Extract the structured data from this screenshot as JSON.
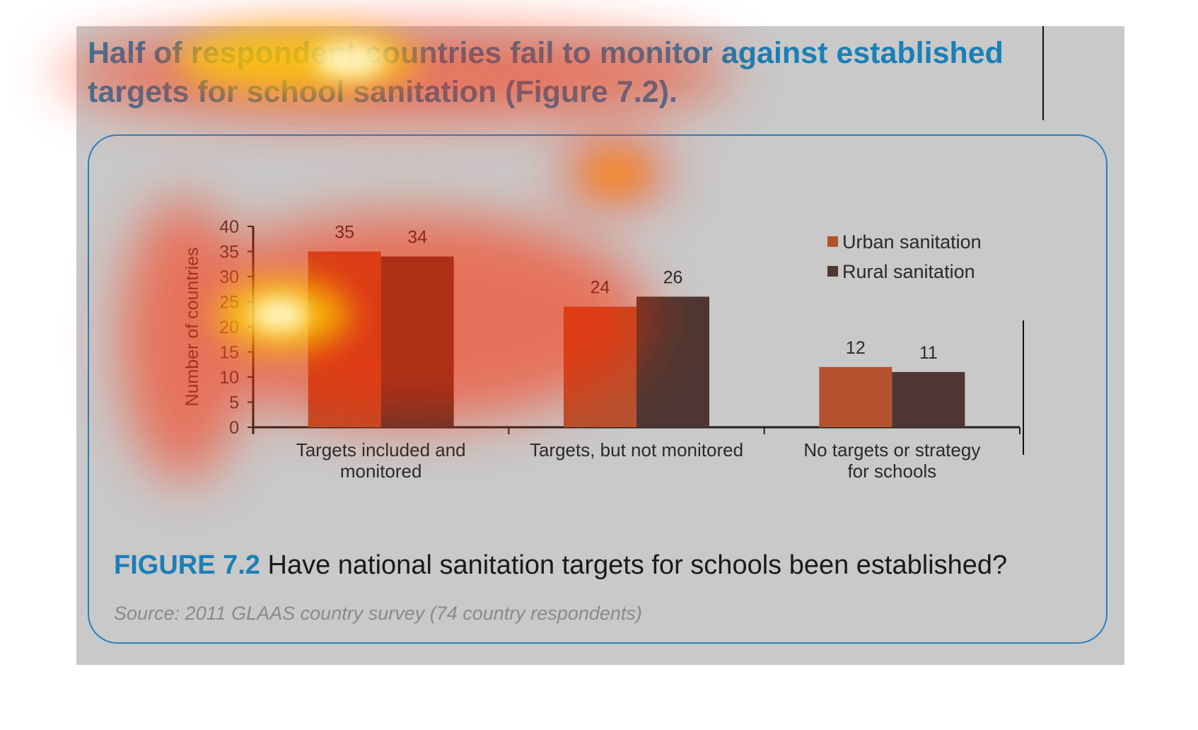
{
  "headline": "Half of respondent countries fail to monitor against established targets for school sanitation (Figure 7.2).",
  "caption": {
    "figure_number": "FIGURE 7.2",
    "text": " Have national sanitation targets for schools been established?"
  },
  "source": "Source: 2011 GLAAS country survey (74 country respondents)",
  "colors": {
    "urban": "#b4522f",
    "rural": "#4e3732",
    "accent": "#1a7fb6",
    "panel": "#c9c9c9"
  },
  "chart_data": {
    "type": "bar",
    "title": "",
    "xlabel": "",
    "ylabel": "Number of countries",
    "ylim": [
      0,
      40
    ],
    "yticks": [
      0,
      5,
      10,
      15,
      20,
      25,
      30,
      35,
      40
    ],
    "categories": [
      [
        "Targets included and",
        "monitored"
      ],
      [
        "Targets, but not monitored"
      ],
      [
        "No targets or strategy",
        "for schools"
      ]
    ],
    "series": [
      {
        "name": "Urban sanitation",
        "values": [
          35,
          24,
          12
        ]
      },
      {
        "name": "Rural sanitation",
        "values": [
          34,
          26,
          11
        ]
      }
    ],
    "legend_position": "top-right",
    "data_labels": true,
    "grid": false
  }
}
